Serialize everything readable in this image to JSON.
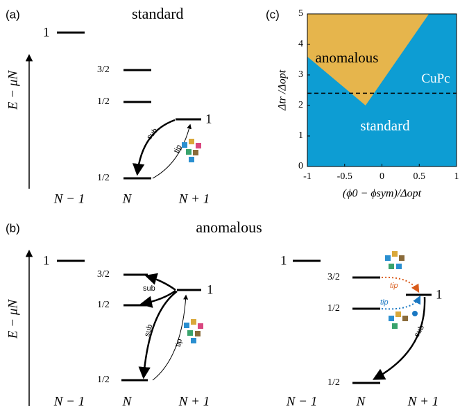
{
  "panel_a": {
    "label": "(a)",
    "title": "standard",
    "y_axis": "E − μN",
    "levels": [
      "1",
      "3/2",
      "1/2",
      "1",
      "1/2"
    ],
    "columns": [
      "N − 1",
      "N",
      "N + 1"
    ],
    "arrows": [
      "sub",
      "tip"
    ]
  },
  "panel_b": {
    "label": "(b)",
    "title": "anomalous",
    "left": {
      "y_axis": "E − μN",
      "levels": [
        "1",
        "3/2",
        "1/2",
        "1",
        "1/2"
      ],
      "columns": [
        "N − 1",
        "N",
        "N + 1"
      ],
      "arrows": [
        "sub",
        "sub",
        "tip"
      ]
    },
    "right": {
      "levels": [
        "1",
        "3/2",
        "1/2",
        "1",
        "1/2"
      ],
      "columns": [
        "N − 1",
        "N",
        "N + 1"
      ],
      "arrows": [
        "tip",
        "tip",
        "sub"
      ]
    }
  },
  "chart_data": {
    "type": "area",
    "panel_label": "(c)",
    "x_label": "(ϕ0 − ϕsym)/Δopt",
    "y_label": "Δtr /Δopt",
    "xlim": [
      -1,
      1
    ],
    "ylim": [
      0,
      5
    ],
    "xticks": [
      -1,
      -0.5,
      0,
      0.5,
      1
    ],
    "yticks": [
      0,
      1,
      2,
      3,
      4,
      5
    ],
    "background": {
      "name": "standard",
      "color": "#0d9dd3"
    },
    "series": [
      {
        "name": "anomalous",
        "color": "#e6b54c",
        "x": [
          -1,
          -1,
          -0.22,
          0.63
        ],
        "y": [
          5,
          3.6,
          2.0,
          5
        ]
      }
    ],
    "reference_line": {
      "name": "CuPc",
      "y": 2.4
    }
  }
}
